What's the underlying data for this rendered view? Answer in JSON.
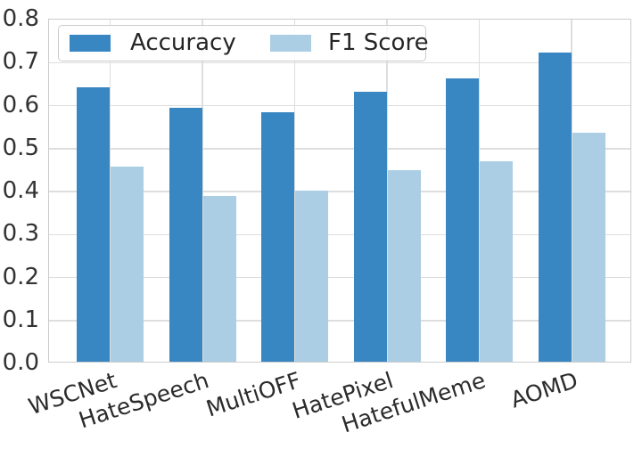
{
  "chart_data": {
    "type": "bar",
    "categories": [
      "WSCNet",
      "HateSpeech",
      "MultiOFF",
      "HatePixel",
      "HatefulMeme",
      "AOMD"
    ],
    "series": [
      {
        "name": "Accuracy",
        "color": "#3886c2",
        "values": [
          0.638,
          0.59,
          0.58,
          0.628,
          0.66,
          0.719
        ]
      },
      {
        "name": "F1 Score",
        "color": "#abcee4",
        "values": [
          0.454,
          0.386,
          0.398,
          0.446,
          0.467,
          0.532
        ]
      }
    ],
    "title": "",
    "xlabel": "",
    "ylabel": "",
    "ylim": [
      0.0,
      0.8
    ],
    "yticks": [
      0.0,
      0.1,
      0.2,
      0.3,
      0.4,
      0.5,
      0.6,
      0.7,
      0.8
    ],
    "ytick_labels": [
      "0.0",
      "0.1",
      "0.2",
      "0.3",
      "0.4",
      "0.5",
      "0.6",
      "0.7",
      "0.8"
    ],
    "xtick_rotation_deg": 18,
    "grid": true,
    "grid_color": "#dedede",
    "legend_position": "upper left"
  },
  "legend": {
    "items": [
      {
        "label": "Accuracy",
        "color": "#3886c2"
      },
      {
        "label": "F1 Score",
        "color": "#abcee4"
      }
    ]
  },
  "colors": {
    "background": "#ffffff",
    "spine": "#cccccc",
    "tick_text": "#333333",
    "label_text": "#2b2b2b"
  }
}
